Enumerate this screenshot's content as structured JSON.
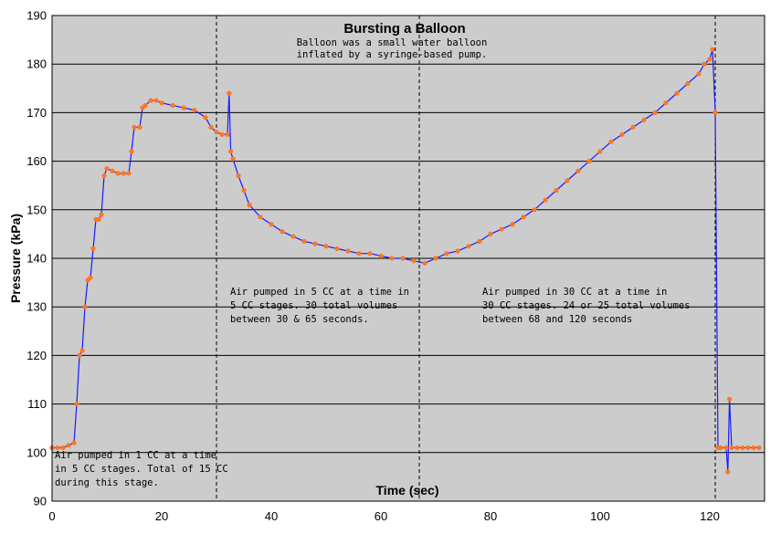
{
  "chart_data": {
    "type": "scatter",
    "title": "Bursting a Balloon",
    "subtitle": [
      "Balloon was a small water balloon",
      "inflated by a syringe-based pump."
    ],
    "xlabel": "Time (sec)",
    "ylabel": "Pressure (kPa)",
    "xlim": [
      0,
      130
    ],
    "ylim": [
      90,
      190
    ],
    "xticks": [
      0,
      20,
      40,
      60,
      80,
      100,
      120
    ],
    "yticks": [
      90,
      100,
      110,
      120,
      130,
      140,
      150,
      160,
      170,
      180,
      190
    ],
    "grid": "horizontal",
    "line_color": "#1a1aff",
    "marker_color": "#ff7722",
    "background_color": "#cccccc",
    "vlines": [
      30,
      67,
      121
    ],
    "series": [
      {
        "x": [
          0,
          1,
          2,
          3,
          4,
          4.5,
          5,
          5.5,
          6,
          6.5,
          7,
          7.5,
          8,
          8.5,
          9,
          9.5,
          10,
          11,
          12,
          13,
          14,
          14.5,
          15,
          16,
          16.5,
          17,
          18,
          19,
          20,
          22,
          24,
          26,
          28,
          29,
          30,
          31,
          32,
          32.3,
          32.6,
          33,
          34,
          35,
          36,
          38,
          40,
          42,
          44,
          46,
          48,
          50,
          52,
          54,
          56,
          58,
          60,
          62,
          64,
          66,
          68,
          70,
          72,
          74,
          76,
          78,
          80,
          82,
          84,
          86,
          88,
          90,
          92,
          94,
          96,
          98,
          100,
          102,
          104,
          106,
          108,
          110,
          112,
          114,
          116,
          118,
          119,
          120,
          120.5,
          121,
          121.5,
          122,
          123,
          123.3,
          123.6,
          124,
          125,
          126,
          127,
          128,
          129
        ],
        "y": [
          101,
          101,
          101,
          101.5,
          102,
          110,
          120,
          121,
          130,
          135.5,
          136,
          142,
          148,
          148,
          149,
          157,
          158.5,
          158,
          157.5,
          157.5,
          157.5,
          162,
          167,
          167,
          171,
          171.5,
          172.5,
          172.5,
          172,
          171.5,
          171,
          170.5,
          169,
          167,
          166,
          165.5,
          165.5,
          174,
          162,
          160.5,
          157,
          154,
          151,
          148.5,
          147,
          145.5,
          144.5,
          143.5,
          143,
          142.5,
          142,
          141.5,
          141,
          141,
          140.5,
          140,
          140,
          139.5,
          139,
          140,
          141,
          141.5,
          142.5,
          143.5,
          145,
          146,
          147,
          148.5,
          150,
          152,
          154,
          156,
          158,
          160,
          162,
          164,
          165.5,
          167,
          168.5,
          170,
          172,
          174,
          176,
          178,
          180,
          181,
          183,
          170,
          101,
          101,
          101,
          96,
          111,
          101,
          101,
          101,
          101,
          101,
          101
        ]
      }
    ],
    "annotations": [
      {
        "x": 0.5,
        "y": 98.8,
        "lines": [
          "Air pumped in 1 CC at a time",
          "in 5 CC stages. Total of 15 CC",
          "during this stage."
        ]
      },
      {
        "x": 32.5,
        "y": 132.5,
        "lines": [
          "Air pumped in 5 CC at a time in",
          "5 CC stages. 30 total volumes",
          "between 30 & 65 seconds."
        ]
      },
      {
        "x": 78.5,
        "y": 132.5,
        "lines": [
          "Air pumped in 30 CC at a time in",
          "30 CC stages. 24 or 25 total volumes",
          "between 68 and 120 seconds"
        ]
      }
    ]
  }
}
